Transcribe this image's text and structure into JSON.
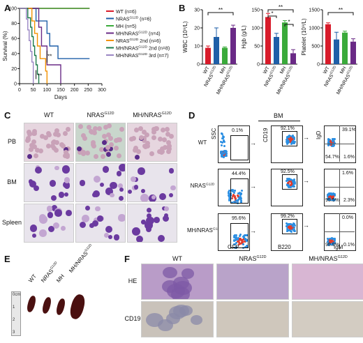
{
  "panels": {
    "a": "A",
    "b": "B",
    "c": "C",
    "d": "D",
    "e": "E",
    "f": "F"
  },
  "colors": {
    "wt": "#d81b2a",
    "nras": "#1f5fa8",
    "mh": "#3aaa3a",
    "mhnras": "#6a2a86",
    "nras2nd": "#f39200",
    "mhnras2nd": "#1b7a4a",
    "mhnras3rd": "#9a86c4"
  },
  "chart_data": [
    {
      "type": "line",
      "subtype": "kaplan-meier",
      "ylabel": "Survival (%)",
      "xlabel": "Days",
      "xlim": [
        0,
        300
      ],
      "ylim": [
        0,
        100
      ],
      "xticks": [
        "0",
        "50",
        "100",
        "150",
        "200",
        "250",
        "300"
      ],
      "yticks": [
        "0",
        "20",
        "40",
        "60",
        "80",
        "100"
      ],
      "annotations": [
        "**",
        "**"
      ],
      "series": [
        {
          "name": "WT (n=6)",
          "key": "wt",
          "x": [
            0,
            255
          ],
          "y": [
            100,
            100
          ]
        },
        {
          "name": "NRAS G12D (n=6)",
          "key": "nras",
          "x": [
            0,
            60,
            100,
            110,
            140,
            150,
            255
          ],
          "y": [
            100,
            83.3,
            66.7,
            50,
            33.3,
            33.3,
            33.3
          ]
        },
        {
          "name": "MH (n=5)",
          "key": "mh",
          "x": [
            0,
            255
          ],
          "y": [
            100,
            100
          ]
        },
        {
          "name": "MH/NRAS G12D (n=4)",
          "key": "mhnras",
          "x": [
            0,
            70,
            80,
            100,
            120,
            150
          ],
          "y": [
            100,
            75,
            50,
            25,
            25,
            0
          ]
        },
        {
          "name": "NRAS G12D 2nd (n=6)",
          "key": "nras2nd",
          "x": [
            0,
            45,
            55,
            65,
            75,
            95,
            100
          ],
          "y": [
            100,
            83.3,
            66.7,
            50,
            33.3,
            16.7,
            0
          ]
        },
        {
          "name": "MH/NRAS G12D 2nd (n=8)",
          "key": "mhnras2nd",
          "x": [
            0,
            30,
            40,
            45,
            50,
            55,
            60,
            65,
            70
          ],
          "y": [
            100,
            87.5,
            75,
            62.5,
            50,
            37.5,
            25,
            12.5,
            0
          ]
        },
        {
          "name": "MH/NRAS G12D 3rd (n=7)",
          "key": "mhnras3rd",
          "x": [
            0,
            25,
            30,
            35,
            40,
            45,
            50
          ],
          "y": [
            100,
            85.7,
            71.4,
            57.1,
            42.9,
            28.6,
            0
          ]
        }
      ],
      "legend": [
        {
          "key": "wt",
          "label": "WT (n=6)"
        },
        {
          "key": "nras",
          "label": "NRAS",
          "sup": "G12D",
          "rest": " (n=6)"
        },
        {
          "key": "mh",
          "label": "MH (n=5)"
        },
        {
          "key": "mhnras",
          "label": "MH/NRAS",
          "sup": "G12D",
          "rest": " (n=4)"
        },
        {
          "key": "nras2nd",
          "label": "NRAS",
          "sup": "G12D",
          "rest": " 2nd (n=6)"
        },
        {
          "key": "mhnras2nd",
          "label": "MH/NRAS",
          "sup": "G12D",
          "rest": " 2nd (n=8)"
        },
        {
          "key": "mhnras3rd",
          "label": "MH/NRAS",
          "sup": "G12D",
          "rest": " 3rd (n=7)"
        }
      ]
    },
    {
      "type": "bar",
      "ylabel": "WBC (10⁹/L)",
      "categories": [
        "WT",
        "NRAS G12D",
        "MH",
        "MH/NRAS G12D"
      ],
      "values": [
        9,
        15,
        9,
        20
      ],
      "errors": [
        1,
        5,
        0.5,
        1.5
      ],
      "ylim": [
        0,
        30
      ],
      "yticks": [
        "0",
        "10",
        "20",
        "30"
      ],
      "annotations": [
        "**"
      ]
    },
    {
      "type": "bar",
      "ylabel": "Hgb (g/L)",
      "categories": [
        "WT",
        "NRAS G12D",
        "MH",
        "MH/NRAS G12D"
      ],
      "values": [
        130,
        75,
        115,
        30
      ],
      "errors": [
        10,
        10,
        5,
        10
      ],
      "ylim": [
        0,
        150
      ],
      "yticks": [
        "0",
        "50",
        "100",
        "150"
      ],
      "annotations": [
        "*",
        "**",
        "*"
      ]
    },
    {
      "type": "bar",
      "ylabel": "Platelet (10⁹/L)",
      "categories": [
        "WT",
        "NRAS G12D",
        "MH",
        "MH/NRAS G12D"
      ],
      "values": [
        1100,
        680,
        870,
        620
      ],
      "errors": [
        40,
        200,
        40,
        80
      ],
      "ylim": [
        0,
        1500
      ],
      "yticks": [
        "0",
        "500",
        "1000",
        "1500"
      ],
      "annotations": [
        "**"
      ]
    }
  ],
  "panel_b": {
    "xlabels": [
      {
        "base": "WT",
        "sup": ""
      },
      {
        "base": "NRAS",
        "sup": "G12D"
      },
      {
        "base": "MH",
        "sup": ""
      },
      {
        "base": "MH/NRAS",
        "sup": "G12D"
      }
    ]
  },
  "panel_c": {
    "columns": [
      {
        "base": "WT",
        "sup": ""
      },
      {
        "base": "NRAS",
        "sup": "G12D"
      },
      {
        "base": "MH/NRAS",
        "sup": "G12D"
      }
    ],
    "rows": [
      "PB",
      "BM",
      "Spleen"
    ]
  },
  "panel_d": {
    "header": "BM",
    "rows": [
      {
        "base": "WT",
        "sup": ""
      },
      {
        "base": "NRAS",
        "sup": "G12D"
      },
      {
        "base": "MH/NRAS",
        "sup": "G12D"
      }
    ],
    "axes": {
      "ssc": "SSC",
      "gfp": "GFP",
      "cd19": "CD19",
      "b220": "B220",
      "igd": "IgD",
      "igm": "IgM"
    },
    "gfp_pct": [
      "0.1%",
      "44.4%",
      "95.6%"
    ],
    "cd19_pct": [
      "92.1%",
      "92.5%",
      "99.2%"
    ],
    "igd_ul": [
      "",
      "",
      ""
    ],
    "igd_ur": [
      "39.1%",
      "1.6%",
      "0.0%"
    ],
    "igd_ll": [
      "54.7%",
      "95.5%",
      "99.9%"
    ],
    "igd_lr": [
      "1.6%",
      "2.3%",
      "0.1%"
    ]
  },
  "panel_e": {
    "labels": [
      {
        "base": "WT",
        "sup": ""
      },
      {
        "base": "NRAS",
        "sup": "G12D"
      },
      {
        "base": "MH",
        "sup": ""
      },
      {
        "base": "MH/NRAS",
        "sup": "G12D"
      }
    ],
    "ruler": [
      "0cm",
      "1",
      "2",
      "3"
    ]
  },
  "panel_f": {
    "columns": [
      {
        "base": "WT",
        "sup": ""
      },
      {
        "base": "NRAS",
        "sup": "G12D"
      },
      {
        "base": "MH/NRAS",
        "sup": "G12D"
      }
    ],
    "rows": [
      "HE",
      "CD19"
    ]
  }
}
